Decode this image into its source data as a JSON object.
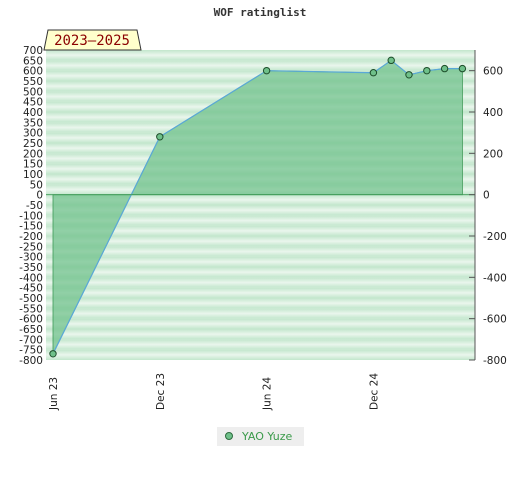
{
  "chart_data": {
    "type": "area",
    "title": "WOF ratinglist",
    "badge": "2023–2025",
    "x": [
      "2023-06",
      "2023-12",
      "2024-06",
      "2024-12",
      "2025-01",
      "2025-02",
      "2025-03",
      "2025-04",
      "2025-05"
    ],
    "x_tick_labels": [
      "Jun 23",
      "Dec 23",
      "Jun 24",
      "Dec 24"
    ],
    "series": [
      {
        "name": "YAO Yuze",
        "values": [
          -770,
          280,
          600,
          590,
          650,
          580,
          600,
          610,
          610
        ]
      }
    ],
    "ylim": [
      -800,
      700
    ],
    "left_ticks": [
      700,
      650,
      600,
      550,
      500,
      450,
      400,
      350,
      300,
      250,
      200,
      150,
      100,
      50,
      0,
      -50,
      -100,
      -150,
      -200,
      -250,
      -300,
      -350,
      -400,
      -450,
      -500,
      -550,
      -600,
      -650,
      -700,
      -750,
      -800
    ],
    "right_ticks": [
      600,
      400,
      200,
      0,
      -200,
      -400,
      -600,
      -800
    ],
    "grid": true,
    "legend_position": "bottom",
    "colors": {
      "fill": "#6fc08a",
      "line": "#5aa8d8",
      "marker": "#3e9a57",
      "badge_bg": "#ffffcc",
      "badge_text": "#8b0000"
    }
  }
}
